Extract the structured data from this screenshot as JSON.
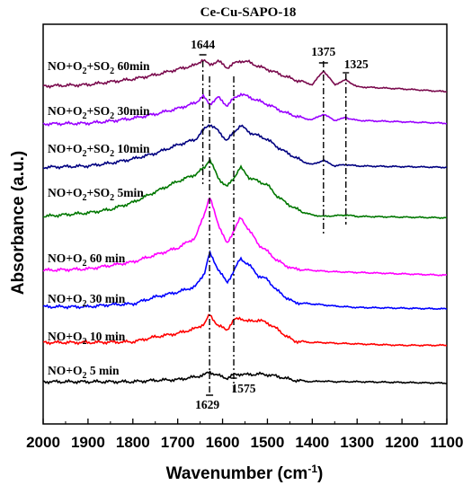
{
  "chart_data": {
    "type": "line",
    "title": "Ce-Cu-SAPO-18",
    "xlabel_main": "Wavenumber (cm",
    "xlabel_sup": "-1",
    "xlabel_close": ")",
    "ylabel": "Absorbance (a.u.)",
    "xlim": [
      2000,
      1100
    ],
    "x_reversed": true,
    "xticks": [
      2000,
      1900,
      1800,
      1700,
      1600,
      1500,
      1400,
      1300,
      1200,
      1100
    ],
    "grid": false,
    "legend": "none",
    "series": [
      {
        "label_main": "NO+O",
        "label_sub": "2",
        "label_rest": " 5 min",
        "color": "#000000",
        "x": [
          2000,
          1900,
          1800,
          1750,
          1700,
          1660,
          1640,
          1629,
          1610,
          1590,
          1575,
          1560,
          1545,
          1520,
          1500,
          1480,
          1460,
          1440,
          1400,
          1380,
          1350,
          1300,
          1200,
          1100
        ],
        "y": [
          0.14,
          0.14,
          0.14,
          0.16,
          0.17,
          0.21,
          0.24,
          0.28,
          0.23,
          0.19,
          0.24,
          0.25,
          0.24,
          0.25,
          0.24,
          0.22,
          0.19,
          0.16,
          0.14,
          0.15,
          0.14,
          0.14,
          0.13,
          0.12
        ]
      },
      {
        "label_main": "NO+O",
        "label_sub": "2",
        "label_rest": " 10 min",
        "color": "#ff0000",
        "x": [
          2000,
          1900,
          1800,
          1750,
          1700,
          1660,
          1640,
          1629,
          1610,
          1590,
          1575,
          1560,
          1545,
          1520,
          1500,
          1480,
          1460,
          1440,
          1400,
          1380,
          1350,
          1300,
          1200,
          1100
        ],
        "y": [
          0.7,
          0.7,
          0.71,
          0.78,
          0.83,
          0.9,
          0.97,
          1.1,
          0.94,
          0.88,
          1.02,
          1.05,
          1.0,
          1.02,
          0.98,
          0.9,
          0.8,
          0.72,
          0.7,
          0.7,
          0.69,
          0.68,
          0.66,
          0.66
        ]
      },
      {
        "label_main": "NO+O",
        "label_sub": "2",
        "label_rest": " 30 min",
        "color": "#0000ff",
        "x": [
          2000,
          1900,
          1850,
          1800,
          1750,
          1700,
          1660,
          1640,
          1629,
          1610,
          1590,
          1575,
          1560,
          1540,
          1520,
          1500,
          1480,
          1460,
          1440,
          1400,
          1380,
          1350,
          1300,
          1200,
          1100
        ],
        "y": [
          1.21,
          1.21,
          1.24,
          1.25,
          1.35,
          1.42,
          1.5,
          1.7,
          1.98,
          1.75,
          1.55,
          1.72,
          1.9,
          1.8,
          1.65,
          1.6,
          1.45,
          1.35,
          1.27,
          1.25,
          1.24,
          1.22,
          1.2,
          1.19,
          1.18
        ]
      },
      {
        "label_main": "NO+O",
        "label_sub": "2",
        "label_rest": " 60 min",
        "color": "#ff00ff",
        "x": [
          2000,
          1900,
          1850,
          1800,
          1750,
          1700,
          1660,
          1640,
          1629,
          1610,
          1590,
          1575,
          1560,
          1540,
          1520,
          1500,
          1480,
          1460,
          1440,
          1400,
          1380,
          1350,
          1300,
          1200,
          1100
        ],
        "y": [
          1.73,
          1.75,
          1.8,
          1.85,
          1.95,
          2.05,
          2.2,
          2.55,
          2.78,
          2.4,
          2.1,
          2.3,
          2.48,
          2.3,
          2.1,
          2.0,
          1.88,
          1.8,
          1.75,
          1.73,
          1.72,
          1.71,
          1.7,
          1.68,
          1.66
        ]
      },
      {
        "label_main": "NO+O",
        "label_sub": "2",
        "label_rest": "+SO",
        "label_sub2": "2",
        "label_rest2": " 5min",
        "color": "#007700",
        "x": [
          2000,
          1900,
          1850,
          1800,
          1750,
          1700,
          1660,
          1640,
          1629,
          1610,
          1590,
          1575,
          1560,
          1540,
          1520,
          1500,
          1480,
          1460,
          1440,
          1420,
          1400,
          1375,
          1350,
          1325,
          1300,
          1200,
          1100
        ],
        "y": [
          2.5,
          2.55,
          2.6,
          2.7,
          2.85,
          3.0,
          3.1,
          3.2,
          3.32,
          3.05,
          2.92,
          3.05,
          3.2,
          3.05,
          3.0,
          2.95,
          2.8,
          2.7,
          2.62,
          2.56,
          2.52,
          2.5,
          2.51,
          2.52,
          2.5,
          2.49,
          2.48
        ]
      },
      {
        "label_main": "NO+O",
        "label_sub": "2",
        "label_rest": "+SO",
        "label_sub2": "2",
        "label_rest2": " 10min",
        "color": "#000080",
        "x": [
          2000,
          1900,
          1850,
          1800,
          1750,
          1700,
          1660,
          1640,
          1629,
          1610,
          1590,
          1575,
          1560,
          1540,
          1520,
          1500,
          1480,
          1460,
          1440,
          1420,
          1400,
          1375,
          1350,
          1325,
          1300,
          1200,
          1100
        ],
        "y": [
          3.2,
          3.22,
          3.26,
          3.32,
          3.4,
          3.52,
          3.6,
          3.75,
          3.82,
          3.72,
          3.58,
          3.7,
          3.8,
          3.7,
          3.65,
          3.6,
          3.5,
          3.42,
          3.35,
          3.28,
          3.24,
          3.3,
          3.22,
          3.24,
          3.22,
          3.21,
          3.2
        ]
      },
      {
        "label_main": "NO+O",
        "label_sub": "2",
        "label_rest": "+SO",
        "label_sub2": "2",
        "label_rest2": " 30min",
        "color": "#9900ff",
        "x": [
          2000,
          1900,
          1850,
          1800,
          1750,
          1700,
          1660,
          1644,
          1629,
          1610,
          1590,
          1575,
          1560,
          1540,
          1520,
          1500,
          1480,
          1460,
          1440,
          1420,
          1400,
          1375,
          1350,
          1325,
          1300,
          1200,
          1100
        ],
        "y": [
          3.82,
          3.83,
          3.86,
          3.9,
          3.96,
          4.04,
          4.12,
          4.22,
          4.1,
          4.2,
          4.08,
          4.18,
          4.25,
          4.2,
          4.15,
          4.1,
          4.04,
          3.98,
          3.94,
          3.9,
          3.88,
          3.96,
          3.87,
          3.91,
          3.87,
          3.85,
          3.83
        ]
      },
      {
        "label_main": "NO+O",
        "label_sub": "2",
        "label_rest": "+SO",
        "label_sub2": "2",
        "label_rest2": " 60min",
        "color": "#7a0a4d",
        "x": [
          2000,
          1900,
          1850,
          1800,
          1750,
          1700,
          1660,
          1644,
          1629,
          1610,
          1590,
          1575,
          1560,
          1540,
          1520,
          1500,
          1480,
          1460,
          1440,
          1420,
          1400,
          1375,
          1350,
          1325,
          1300,
          1200,
          1100
        ],
        "y": [
          4.36,
          4.38,
          4.42,
          4.46,
          4.52,
          4.6,
          4.66,
          4.74,
          4.66,
          4.72,
          4.62,
          4.68,
          4.72,
          4.7,
          4.64,
          4.6,
          4.55,
          4.5,
          4.45,
          4.42,
          4.38,
          4.58,
          4.38,
          4.45,
          4.35,
          4.32,
          4.28
        ]
      }
    ],
    "annotations": [
      {
        "text": "1644",
        "x": 1644
      },
      {
        "text": "1375",
        "x": 1375
      },
      {
        "text": "1325",
        "x": 1325
      },
      {
        "text": "1629",
        "x": 1629
      },
      {
        "text": "1575",
        "x": 1575
      }
    ]
  }
}
